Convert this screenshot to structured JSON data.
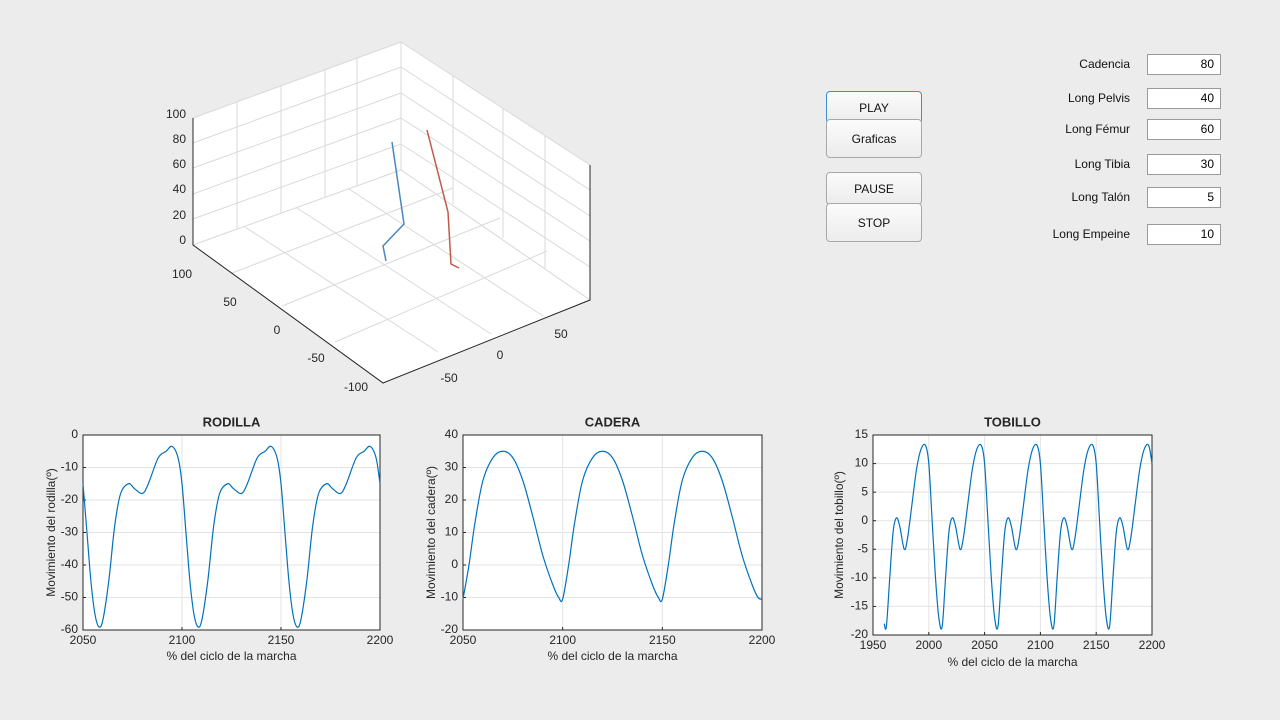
{
  "controls": {
    "buttons": [
      "PLAY",
      "Graficas",
      "PAUSE",
      "STOP"
    ],
    "params": [
      {
        "label": "Cadencia",
        "value": 80
      },
      {
        "label": "Long Pelvis",
        "value": 40
      },
      {
        "label": "Long Fémur",
        "value": 60
      },
      {
        "label": "Long Tibia",
        "value": 30
      },
      {
        "label": "Long Talón",
        "value": 5
      },
      {
        "label": "Long Empeine",
        "value": 10
      }
    ]
  },
  "plot3d": {
    "zticks": [
      0,
      20,
      40,
      60,
      80,
      100
    ],
    "yticks": [
      100,
      50,
      0,
      -50,
      -100
    ],
    "xticks": [
      -50,
      0,
      50
    ]
  },
  "chart_data": [
    {
      "type": "line",
      "title": "RODILLA",
      "xlabel": "% del ciclo de la marcha",
      "ylabel": "Movimiento del rodilla(º)",
      "color": "#0072bd",
      "grid": true,
      "xlim": [
        2050,
        2200
      ],
      "ylim": [
        -60,
        0
      ],
      "xticks": [
        2050,
        2100,
        2150,
        2200
      ],
      "yticks": [
        -60,
        -50,
        -40,
        -30,
        -20,
        -10,
        0
      ],
      "x": [
        2050,
        2052,
        2054,
        2056,
        2058,
        2060,
        2063,
        2066,
        2069,
        2073,
        2076,
        2080,
        2083,
        2088,
        2092,
        2095,
        2098,
        2100,
        2102,
        2104,
        2106,
        2108,
        2110,
        2113,
        2116,
        2119,
        2123,
        2126,
        2130,
        2133,
        2138,
        2142,
        2145,
        2148,
        2150,
        2152,
        2154,
        2156,
        2158,
        2160,
        2163,
        2166,
        2169,
        2173,
        2176,
        2180,
        2183,
        2188,
        2192,
        2195,
        2198,
        2200
      ],
      "values": [
        -15,
        -30,
        -45,
        -55,
        -59,
        -57,
        -45,
        -28,
        -18,
        -15,
        -16.5,
        -18,
        -15,
        -7,
        -5,
        -3.5,
        -7,
        -15,
        -30,
        -45,
        -55,
        -59,
        -57,
        -45,
        -28,
        -18,
        -15,
        -16.5,
        -18,
        -15,
        -7,
        -5,
        -3.5,
        -7,
        -15,
        -30,
        -45,
        -55,
        -59,
        -57,
        -45,
        -28,
        -18,
        -15,
        -16.5,
        -18,
        -15,
        -7,
        -5,
        -3.5,
        -7,
        -15
      ]
    },
    {
      "type": "line",
      "title": "CADERA",
      "xlabel": "% del ciclo de la marcha",
      "ylabel": "Movimiento del cadera(º)",
      "color": "#0072bd",
      "grid": true,
      "xlim": [
        2050,
        2200
      ],
      "ylim": [
        -20,
        40
      ],
      "xticks": [
        2050,
        2100,
        2150,
        2200
      ],
      "yticks": [
        -20,
        -10,
        0,
        10,
        20,
        30,
        40
      ],
      "x": [
        2050,
        2053,
        2056,
        2060,
        2065,
        2070,
        2075,
        2080,
        2085,
        2090,
        2095,
        2098,
        2100,
        2103,
        2106,
        2110,
        2115,
        2120,
        2125,
        2130,
        2135,
        2140,
        2145,
        2148,
        2150,
        2153,
        2156,
        2160,
        2165,
        2170,
        2175,
        2180,
        2185,
        2190,
        2195,
        2198,
        2200
      ],
      "values": [
        -10.5,
        0,
        13,
        26,
        33,
        35,
        33,
        26,
        15,
        3,
        -6,
        -10,
        -10.5,
        0,
        13,
        26,
        33,
        35,
        33,
        26,
        15,
        3,
        -6,
        -10,
        -10.5,
        0,
        13,
        26,
        33,
        35,
        33,
        26,
        15,
        3,
        -6,
        -10,
        -10.5
      ]
    },
    {
      "type": "line",
      "title": "TOBILLO",
      "xlabel": "% del ciclo de la marcha",
      "ylabel": "Movimiento del tobillo(º)",
      "color": "#0072bd",
      "grid": true,
      "xlim": [
        1950,
        2200
      ],
      "ylim": [
        -20,
        15
      ],
      "xticks": [
        1950,
        2000,
        2050,
        2100,
        2150,
        2200
      ],
      "yticks": [
        -20,
        -15,
        -10,
        -5,
        0,
        5,
        10,
        15
      ],
      "x": [
        1960,
        1962,
        1965,
        1968,
        1971,
        1974,
        1978,
        1981,
        1985,
        1989,
        1993,
        1997,
        2000,
        2003,
        2006,
        2009,
        2012,
        2015,
        2018,
        2021,
        2024,
        2028,
        2031,
        2035,
        2039,
        2043,
        2047,
        2050,
        2053,
        2056,
        2059,
        2062,
        2065,
        2068,
        2071,
        2074,
        2078,
        2081,
        2085,
        2089,
        2093,
        2097,
        2100,
        2103,
        2106,
        2109,
        2112,
        2115,
        2118,
        2121,
        2124,
        2128,
        2131,
        2135,
        2139,
        2143,
        2147,
        2150,
        2153,
        2156,
        2159,
        2162,
        2165,
        2168,
        2171,
        2174,
        2178,
        2181,
        2185,
        2189,
        2193,
        2197,
        2200
      ],
      "values": [
        -18,
        -18.5,
        -10,
        -2,
        0.5,
        -1,
        -5,
        -3,
        3,
        9,
        12.5,
        13.2,
        10,
        0,
        -10,
        -17,
        -18.5,
        -10,
        -2,
        0.5,
        -1,
        -5,
        -3,
        3,
        9,
        12.5,
        13.2,
        10,
        0,
        -10,
        -17,
        -18.5,
        -10,
        -2,
        0.5,
        -1,
        -5,
        -3,
        3,
        9,
        12.5,
        13.2,
        10,
        0,
        -10,
        -17,
        -18.5,
        -10,
        -2,
        0.5,
        -1,
        -5,
        -3,
        3,
        9,
        12.5,
        13.2,
        10,
        0,
        -10,
        -17,
        -18.5,
        -10,
        -2,
        0.5,
        -1,
        -5,
        -3,
        3,
        9,
        12.5,
        13.2,
        10
      ]
    }
  ]
}
